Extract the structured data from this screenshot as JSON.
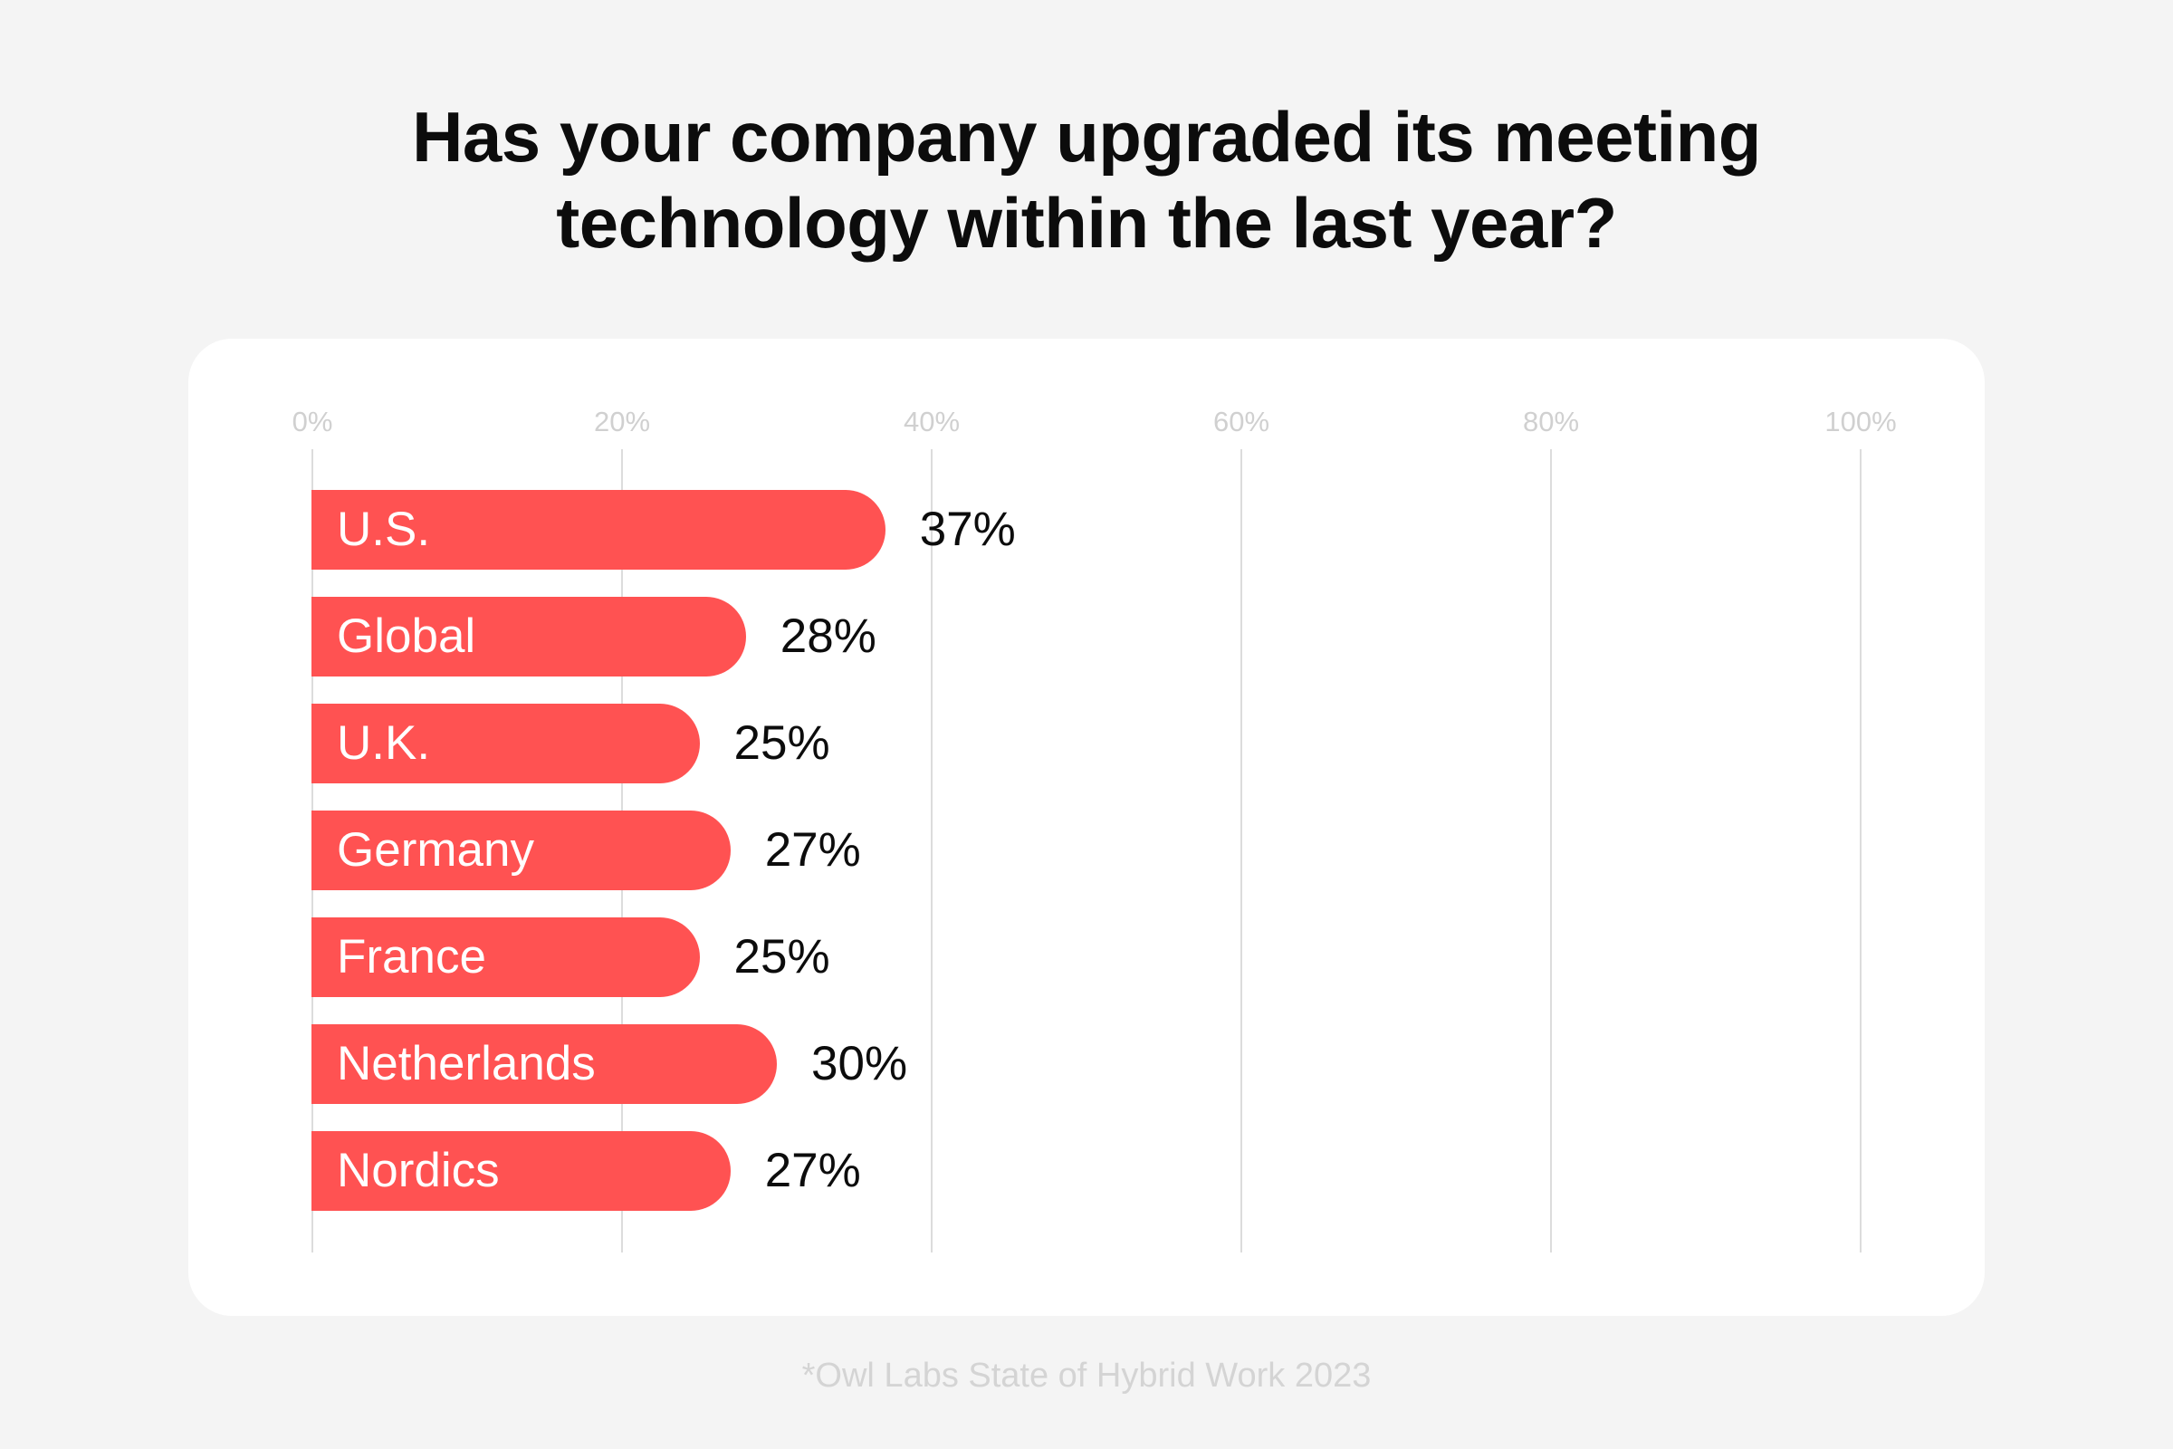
{
  "title": {
    "line1": "Has your company upgraded its meeting",
    "line2": "technology within the last year?"
  },
  "footnote": "*Owl Labs State of Hybrid Work 2023",
  "colors": {
    "bar": "#FF5252",
    "background": "#f4f4f4",
    "card": "#ffffff",
    "gridline": "#dcdcdc",
    "tick_label": "#d0d0d0"
  },
  "axis": {
    "ticks": [
      "0%",
      "20%",
      "40%",
      "60%",
      "80%",
      "100%"
    ]
  },
  "bars": [
    {
      "label": "U.S.",
      "value": 37,
      "value_label": "37%"
    },
    {
      "label": "Global",
      "value": 28,
      "value_label": "28%"
    },
    {
      "label": "U.K.",
      "value": 25,
      "value_label": "25%"
    },
    {
      "label": "Germany",
      "value": 27,
      "value_label": "27%"
    },
    {
      "label": "France",
      "value": 25,
      "value_label": "25%"
    },
    {
      "label": "Netherlands",
      "value": 30,
      "value_label": "30%"
    },
    {
      "label": "Nordics",
      "value": 27,
      "value_label": "27%"
    }
  ],
  "chart_data": {
    "type": "bar",
    "orientation": "horizontal",
    "title": "Has your company upgraded its meeting technology within the last year?",
    "categories": [
      "U.S.",
      "Global",
      "U.K.",
      "Germany",
      "France",
      "Netherlands",
      "Nordics"
    ],
    "values": [
      37,
      28,
      25,
      27,
      25,
      30,
      27
    ],
    "value_labels": [
      "37%",
      "28%",
      "25%",
      "27%",
      "25%",
      "30%",
      "27%"
    ],
    "xlabel": "",
    "ylabel": "",
    "xlim": [
      0,
      100
    ],
    "x_ticks": [
      "0%",
      "20%",
      "40%",
      "60%",
      "80%",
      "100%"
    ],
    "grid": "vertical gridlines at each 20% tick",
    "legend": "none",
    "source_note": "*Owl Labs State of Hybrid Work 2023"
  }
}
